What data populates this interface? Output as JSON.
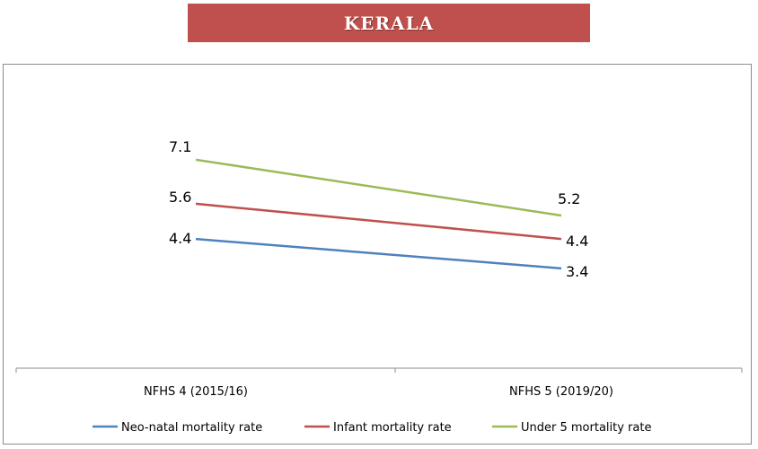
{
  "chart_data": {
    "type": "line",
    "title": "KERALA",
    "categories": [
      "NFHS 4 (2015/16)",
      "NFHS 5 (2019/20)"
    ],
    "series": [
      {
        "name": "Neo-natal mortality rate",
        "values": [
          4.4,
          3.4
        ],
        "color": "#4f81bd"
      },
      {
        "name": "Infant mortality rate",
        "values": [
          5.6,
          4.4
        ],
        "color": "#c0504d"
      },
      {
        "name": "Under 5 mortality rate",
        "values": [
          7.1,
          5.2
        ],
        "color": "#9bbb59"
      }
    ],
    "xlabel": "",
    "ylabel": "",
    "ylim": [
      0,
      10
    ],
    "grid": false,
    "legend_position": "bottom",
    "banner_color": "#c0504d"
  }
}
